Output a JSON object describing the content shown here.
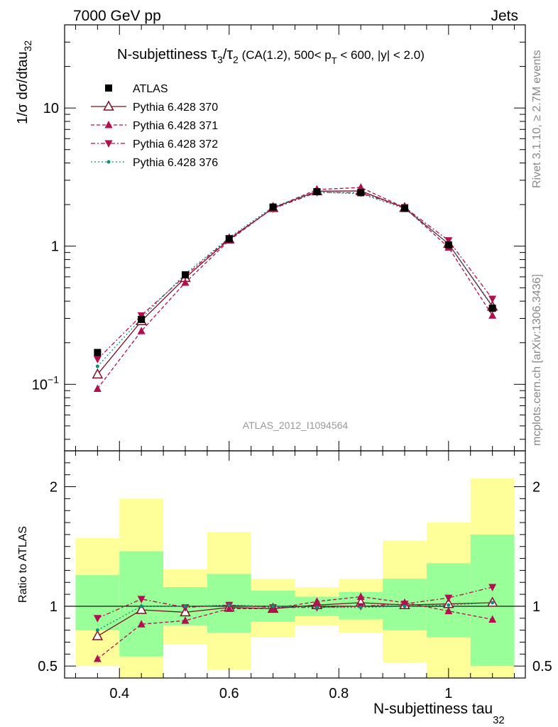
{
  "header": {
    "left": "7000 GeV pp",
    "right": "Jets"
  },
  "side_labels": {
    "top": "Rivet 3.1.10, ≥ 2.7M events",
    "bottom": "mcplots.cern.ch [arXiv:1306.3436]"
  },
  "analysis_id": "ATLAS_2012_I1094564",
  "chart_data": [
    {
      "type": "line",
      "panel": "main",
      "title": "N-subjettiness τ3/τ2 (CA(1.2), 500< pT < 600, |y| < 2.0)",
      "title_parts": {
        "prefix": "N-subjettiness ",
        "tau": "τ",
        "sub_a": "3",
        "slash": "/",
        "sub_b": "2",
        "mid": " (CA(1.2), 500< p",
        "pt_sub": "T",
        "suffix": " < 600, |y| < 2.0)"
      },
      "ylabel": "1/σ dσ/dtau",
      "ylabel_sub": "32",
      "xlim": [
        0.3,
        1.14
      ],
      "ylim": [
        0.033,
        40
      ],
      "yscale": "log",
      "y_ticks": [
        {
          "value": 10,
          "base": "10",
          "exp": ""
        },
        {
          "value": 1,
          "base": "1",
          "exp": ""
        },
        {
          "value": 0.1,
          "base": "10",
          "exp": "−1"
        }
      ],
      "legend_position": "top-left",
      "x": [
        0.36,
        0.44,
        0.52,
        0.6,
        0.68,
        0.76,
        0.84,
        0.92,
        1.0,
        1.08
      ],
      "series": [
        {
          "name": "ATLAS",
          "color": "#000000",
          "marker": "square",
          "style": "points",
          "values": [
            0.17,
            0.295,
            0.62,
            1.13,
            1.92,
            2.48,
            2.44,
            1.88,
            1.02,
            0.355
          ]
        },
        {
          "name": "Pythia 6.428 370",
          "color": "#7a1022",
          "marker": "triangle-open",
          "style": "solid",
          "values": [
            0.118,
            0.287,
            0.59,
            1.12,
            1.89,
            2.5,
            2.51,
            1.89,
            1.04,
            0.365
          ]
        },
        {
          "name": "Pythia 6.428 371",
          "color": "#b0104e",
          "marker": "triangle-up",
          "style": "dashed",
          "values": [
            0.093,
            0.243,
            0.545,
            1.1,
            1.89,
            2.57,
            2.66,
            1.9,
            0.98,
            0.315
          ]
        },
        {
          "name": "Pythia 6.428 372",
          "color": "#b0104e",
          "marker": "triangle-down",
          "style": "dashdot",
          "values": [
            0.152,
            0.315,
            0.61,
            1.14,
            1.87,
            2.45,
            2.43,
            1.91,
            1.1,
            0.415
          ]
        },
        {
          "name": "Pythia 6.428 376",
          "color": "#0f8f7a",
          "marker": "dot",
          "style": "dotted",
          "values": [
            0.135,
            0.3,
            0.63,
            1.15,
            1.93,
            2.46,
            2.4,
            1.87,
            1.04,
            0.37
          ]
        }
      ]
    },
    {
      "type": "line",
      "panel": "ratio",
      "ylabel": "Ratio to ATLAS",
      "xlabel": "N-subjettiness tau",
      "xlabel_sub": "32",
      "xlim": [
        0.3,
        1.14
      ],
      "ylim": [
        0.4,
        2.3
      ],
      "y_ticks": [
        {
          "value": 0.5,
          "label": "0.5"
        },
        {
          "value": 1,
          "label": "1"
        },
        {
          "value": 2,
          "label": "2"
        }
      ],
      "x_ticks": [
        {
          "value": 0.4,
          "label": "0.4"
        },
        {
          "value": 0.6,
          "label": "0.6"
        },
        {
          "value": 0.8,
          "label": "0.8"
        },
        {
          "value": 1.0,
          "label": "1"
        }
      ],
      "bins": [
        {
          "lo": 0.32,
          "hi": 0.4,
          "yellow": [
            0.5,
            1.57
          ],
          "green": [
            0.8,
            1.26
          ]
        },
        {
          "lo": 0.4,
          "hi": 0.48,
          "yellow": [
            0.3,
            1.9
          ],
          "green": [
            0.58,
            1.46
          ]
        },
        {
          "lo": 0.48,
          "hi": 0.56,
          "yellow": [
            0.68,
            1.31
          ],
          "green": [
            0.84,
            1.16
          ]
        },
        {
          "lo": 0.56,
          "hi": 0.64,
          "yellow": [
            0.47,
            1.62
          ],
          "green": [
            0.78,
            1.27
          ]
        },
        {
          "lo": 0.64,
          "hi": 0.72,
          "yellow": [
            0.74,
            1.23
          ],
          "green": [
            0.87,
            1.13
          ]
        },
        {
          "lo": 0.72,
          "hi": 0.8,
          "yellow": [
            0.84,
            1.16
          ],
          "green": [
            0.92,
            1.08
          ]
        },
        {
          "lo": 0.8,
          "hi": 0.88,
          "yellow": [
            0.78,
            1.23
          ],
          "green": [
            0.89,
            1.12
          ]
        },
        {
          "lo": 0.88,
          "hi": 0.96,
          "yellow": [
            0.53,
            1.55
          ],
          "green": [
            0.8,
            1.23
          ]
        },
        {
          "lo": 0.96,
          "hi": 1.04,
          "yellow": [
            0.3,
            1.7
          ],
          "green": [
            0.74,
            1.36
          ]
        },
        {
          "lo": 1.04,
          "hi": 1.12,
          "yellow": [
            0.3,
            2.07
          ],
          "green": [
            0.5,
            1.6
          ]
        }
      ],
      "x": [
        0.36,
        0.44,
        0.52,
        0.6,
        0.68,
        0.76,
        0.84,
        0.92,
        1.0,
        1.08
      ],
      "series": [
        {
          "name": "Pythia 6.428 370",
          "color": "#7a1022",
          "marker": "triangle-open",
          "style": "solid",
          "values": [
            0.75,
            0.97,
            0.95,
            0.99,
            0.98,
            1.01,
            1.03,
            1.01,
            1.02,
            1.03
          ]
        },
        {
          "name": "Pythia 6.428 371",
          "color": "#b0104e",
          "marker": "triangle-up",
          "style": "dashed",
          "values": [
            0.56,
            0.85,
            0.88,
            0.98,
            0.98,
            1.04,
            1.08,
            1.03,
            0.96,
            0.89
          ]
        },
        {
          "name": "Pythia 6.428 372",
          "color": "#b0104e",
          "marker": "triangle-down",
          "style": "dashdot",
          "values": [
            0.9,
            1.06,
            0.99,
            1.01,
            0.99,
            0.99,
            1.0,
            1.02,
            1.07,
            1.16
          ]
        },
        {
          "name": "Pythia 6.428 376",
          "color": "#0f8f7a",
          "marker": "dot",
          "style": "dotted",
          "values": [
            0.8,
            1.0,
            1.0,
            1.01,
            1.0,
            0.99,
            0.99,
            1.0,
            1.01,
            1.03
          ]
        }
      ]
    }
  ]
}
